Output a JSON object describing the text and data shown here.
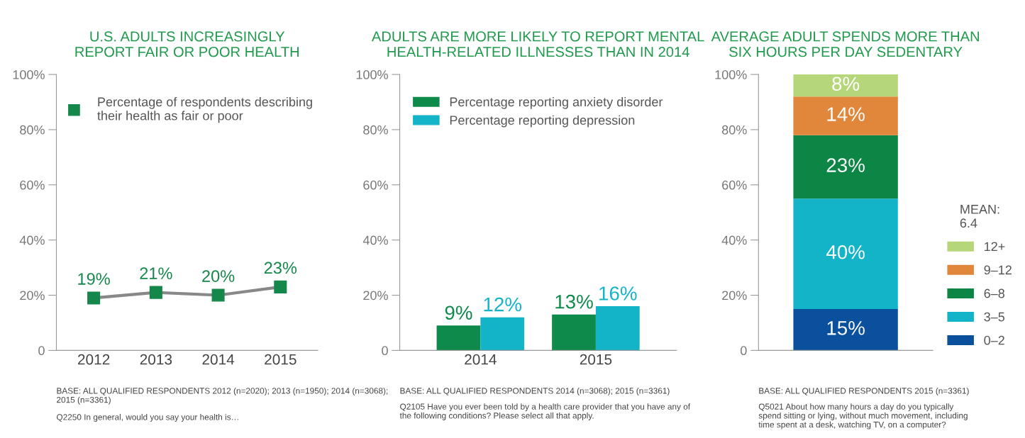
{
  "chart_data": [
    {
      "type": "line",
      "title": "U.S. ADULTS INCREASINGLY\nREPORT FAIR OR POOR HEALTH",
      "categories": [
        "2012",
        "2013",
        "2014",
        "2015"
      ],
      "series": [
        {
          "name": "Percentage of respondents describing\ntheir health as fair or poor",
          "color": "#16874a",
          "values": [
            19,
            21,
            20,
            23
          ],
          "value_labels": [
            "19%",
            "21%",
            "20%",
            "23%"
          ]
        }
      ],
      "ylim": [
        0,
        100
      ],
      "yticks": [
        {
          "value": 0,
          "label": "0"
        },
        {
          "value": 20,
          "label": "20%"
        },
        {
          "value": 40,
          "label": "40%"
        },
        {
          "value": 60,
          "label": "60%"
        },
        {
          "value": 80,
          "label": "80%"
        },
        {
          "value": 100,
          "label": "100%"
        }
      ],
      "marker": "square",
      "line_style": "solid",
      "legend": "top",
      "grid": false,
      "annotations": [
        "BASE: ALL QUALIFIED RESPONDENTS 2012 (n=2020); 2013 (n=1950); 2014 (n=3068);\n2015 (n=3361)",
        "Q2250 In general, would you say your health is…"
      ]
    },
    {
      "type": "bar",
      "title": "ADULTS ARE MORE LIKELY TO REPORT MENTAL\nHEALTH-RELATED ILLNESSES THAN IN 2014",
      "categories": [
        "2014",
        "2015"
      ],
      "series": [
        {
          "name": "Percentage reporting anxiety disorder",
          "color": "#0e8a4a",
          "values": [
            9,
            13
          ],
          "value_labels": [
            "9%",
            "13%"
          ]
        },
        {
          "name": "Percentage reporting depression",
          "color": "#13b3c8",
          "values": [
            12,
            16
          ],
          "value_labels": [
            "12%",
            "16%"
          ]
        }
      ],
      "ylim": [
        0,
        100
      ],
      "yticks": [
        {
          "value": 0,
          "label": "0"
        },
        {
          "value": 20,
          "label": "20%"
        },
        {
          "value": 40,
          "label": "40%"
        },
        {
          "value": 60,
          "label": "60%"
        },
        {
          "value": 80,
          "label": "80%"
        },
        {
          "value": 100,
          "label": "100%"
        }
      ],
      "legend": "top",
      "grid": false,
      "annotations": [
        "BASE: ALL QUALIFIED RESPONDENTS 2014 (n=3068); 2015 (n=3361)",
        "Q2105 Have you ever been told by a health care provider that you have any of\nthe following conditions? Please select all that apply."
      ]
    },
    {
      "type": "bar",
      "stacked": true,
      "title": "AVERAGE ADULT SPENDS MORE THAN\nSIX HOURS PER DAY SEDENTARY",
      "categories": [
        null
      ],
      "series": [
        {
          "name": "0–2",
          "color": "#0a509c",
          "values": [
            15
          ],
          "value_labels": [
            "15%"
          ]
        },
        {
          "name": "3–5",
          "color": "#13b3c8",
          "values": [
            40
          ],
          "value_labels": [
            "40%"
          ]
        },
        {
          "name": "6–8",
          "color": "#0d8544",
          "values": [
            23
          ],
          "value_labels": [
            "23%"
          ]
        },
        {
          "name": "9–12",
          "color": "#e0873c",
          "values": [
            14
          ],
          "value_labels": [
            "14%"
          ]
        },
        {
          "name": "12+",
          "color": "#b6d67a",
          "values": [
            8
          ],
          "value_labels": [
            "8%"
          ]
        }
      ],
      "ylim": [
        0,
        100
      ],
      "yticks": [
        {
          "value": 0,
          "label": "0"
        },
        {
          "value": 20,
          "label": "20%"
        },
        {
          "value": 40,
          "label": "40%"
        },
        {
          "value": 60,
          "label": "60%"
        },
        {
          "value": 80,
          "label": "80%"
        },
        {
          "value": 100,
          "label": "100%"
        }
      ],
      "legend": "right",
      "legend_title": "MEAN:\n6.4",
      "grid": false,
      "annotations": [
        "BASE: ALL QUALIFIED RESPONDENTS 2015 (n=3361)",
        "Q5021 About how many hours a day do you typically\nspend sitting or lying, without much movement, including\ntime spent at a desk, watching TV, on a computer?"
      ]
    }
  ]
}
